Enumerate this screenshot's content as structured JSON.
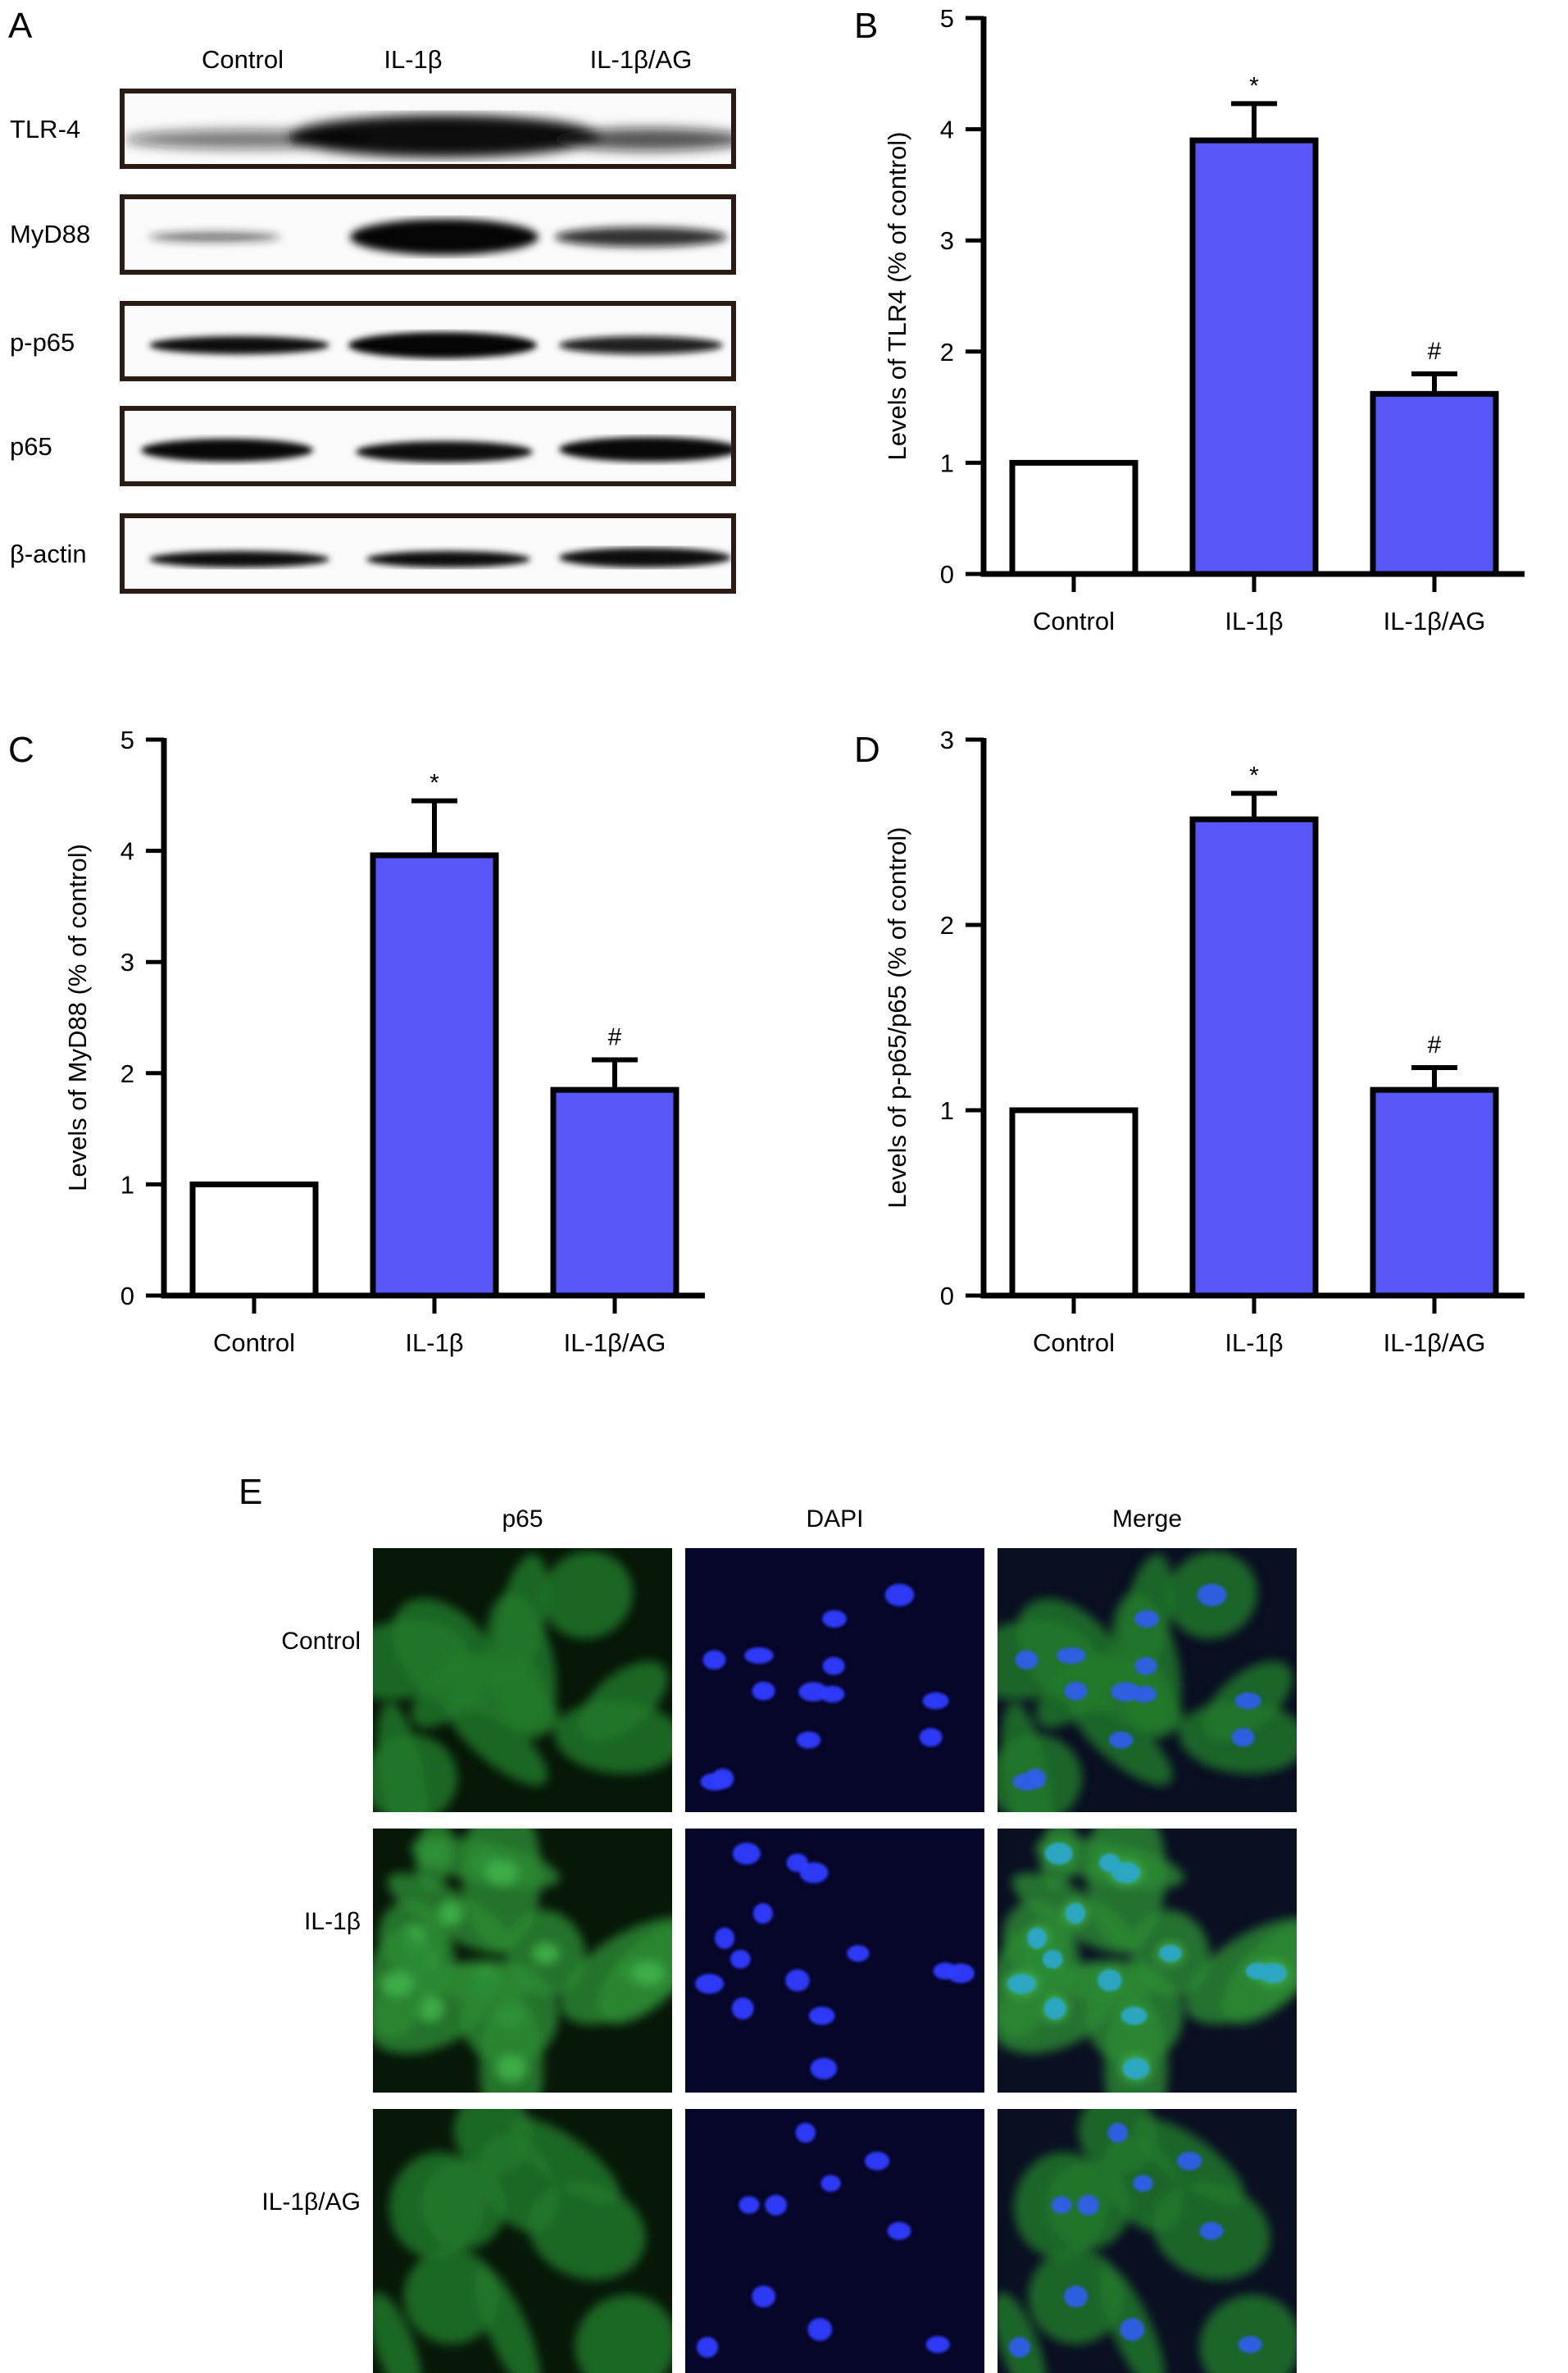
{
  "panels": {
    "a": "A",
    "b": "B",
    "c": "C",
    "d": "D",
    "e": "E"
  },
  "blot": {
    "columns": [
      "Control",
      "IL-1β",
      "IL-1β/AG"
    ],
    "rows": [
      "TLR-4",
      "MyD88",
      "p-p65",
      "p65",
      "β-actin"
    ]
  },
  "chart_data": [
    {
      "type": "bar",
      "categories": [
        "Control",
        "IL-1β",
        "IL-1β/AG"
      ],
      "values": [
        1.0,
        3.9,
        1.62
      ],
      "errors": [
        0,
        0.33,
        0.18
      ],
      "annotations": [
        "",
        "*",
        "#"
      ],
      "ylabel": "Levels of TLR4 (% of control)",
      "ylim": [
        0,
        5
      ],
      "yticks": [
        "0",
        "1",
        "2",
        "3",
        "4",
        "5"
      ],
      "colors": [
        "#ffffff",
        "#5757f8",
        "#5757f8"
      ]
    },
    {
      "type": "bar",
      "categories": [
        "Control",
        "IL-1β",
        "IL-1β/AG"
      ],
      "values": [
        1.0,
        3.96,
        1.85
      ],
      "errors": [
        0,
        0.49,
        0.27
      ],
      "annotations": [
        "",
        "*",
        "#"
      ],
      "ylabel": "Levels of MyD88 (% of control)",
      "ylim": [
        0,
        5
      ],
      "yticks": [
        "0",
        "1",
        "2",
        "3",
        "4",
        "5"
      ],
      "colors": [
        "#ffffff",
        "#5757f8",
        "#5757f8"
      ]
    },
    {
      "type": "bar",
      "categories": [
        "Control",
        "IL-1β",
        "IL-1β/AG"
      ],
      "values": [
        1.0,
        2.57,
        1.11
      ],
      "errors": [
        0,
        0.14,
        0.12
      ],
      "annotations": [
        "",
        "*",
        "#"
      ],
      "ylabel": "Levels of p-p65/p65 (% of control)",
      "ylim": [
        0,
        3
      ],
      "yticks": [
        "0",
        "1",
        "2",
        "3"
      ],
      "colors": [
        "#ffffff",
        "#5757f8",
        "#5757f8"
      ]
    }
  ],
  "fluorescence": {
    "columns": [
      "p65",
      "DAPI",
      "Merge"
    ],
    "rows": [
      "Control",
      "IL-1β",
      "IL-1β/AG"
    ]
  }
}
